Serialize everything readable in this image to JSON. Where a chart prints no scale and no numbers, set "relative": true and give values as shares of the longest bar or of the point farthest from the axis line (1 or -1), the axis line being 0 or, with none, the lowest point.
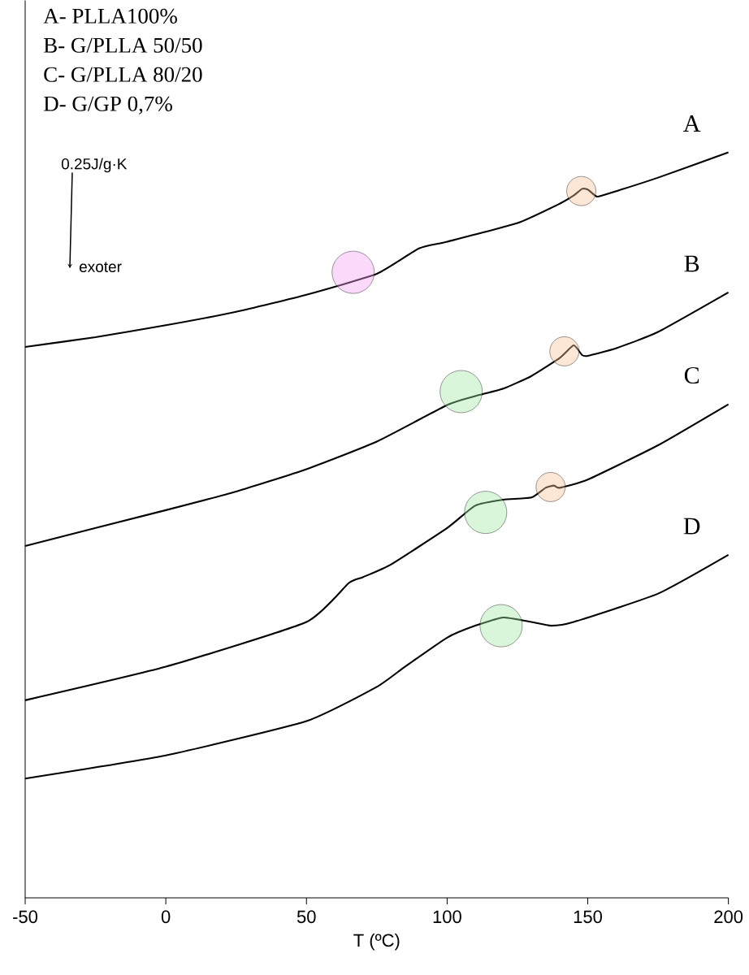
{
  "chart_data": {
    "type": "line",
    "relative": true,
    "xlabel": "T (ºC)",
    "xlim": [
      -50,
      200
    ],
    "xticks": [
      -50,
      0,
      50,
      100,
      150,
      200
    ],
    "grid": false,
    "marker": "none",
    "line_style": "solid",
    "annotations": [
      "A- PLLA100%",
      "B- G/PLLA 50/50",
      "C- G/PLLA 80/20",
      "D- G/GP 0,7%",
      "0.25J/g·K",
      "exoter"
    ],
    "series": [
      {
        "name": "A",
        "color": "#000000",
        "x": [
          -50,
          -25,
          0,
          25,
          50,
          75,
          90,
          100,
          125,
          140,
          145,
          148,
          150,
          153,
          155,
          175,
          200
        ],
        "values": [
          0.739,
          0.752,
          0.768,
          0.786,
          0.809,
          0.837,
          0.871,
          0.88,
          0.905,
          0.931,
          0.942,
          0.951,
          0.95,
          0.941,
          0.942,
          0.966,
          1
        ]
      },
      {
        "name": "B",
        "color": "#000000",
        "x": [
          -50,
          0,
          25,
          50,
          75,
          100,
          110,
          120,
          130,
          140,
          145,
          148,
          150,
          160,
          175,
          200
        ],
        "values": [
          0.472,
          0.52,
          0.545,
          0.575,
          0.612,
          0.661,
          0.673,
          0.683,
          0.7,
          0.724,
          0.741,
          0.728,
          0.727,
          0.737,
          0.759,
          0.812
        ]
      },
      {
        "name": "C",
        "color": "#000000",
        "x": [
          -50,
          0,
          50,
          65,
          70,
          80,
          100,
          110,
          120,
          130,
          135,
          138,
          140,
          150,
          175,
          200
        ],
        "values": [
          0.265,
          0.31,
          0.37,
          0.422,
          0.43,
          0.447,
          0.496,
          0.526,
          0.534,
          0.537,
          0.55,
          0.553,
          0.55,
          0.561,
          0.607,
          0.662
        ]
      },
      {
        "name": "D",
        "color": "#000000",
        "x": [
          -50,
          0,
          50,
          75,
          85,
          100,
          110,
          120,
          130,
          137,
          145,
          175,
          200
        ],
        "values": [
          0.16,
          0.191,
          0.237,
          0.283,
          0.31,
          0.349,
          0.365,
          0.376,
          0.37,
          0.365,
          0.37,
          0.408,
          0.46
        ]
      },
      {
        "type": "scatter",
        "marker": "circle",
        "color": "#f8c29c",
        "x": [
          147.7,
          141.7,
          136.8
        ],
        "values": [
          0.948,
          0.733,
          0.551
        ]
      },
      {
        "type": "scatter",
        "marker": "circle",
        "colors": [
          "#f5a0f5",
          "#a3e8a3",
          "#a3e8a3",
          "#a3e8a3"
        ],
        "x": [
          66.6,
          105,
          113.7,
          119.2
        ],
        "values": [
          0.839,
          0.679,
          0.517,
          0.365
        ]
      }
    ]
  }
}
